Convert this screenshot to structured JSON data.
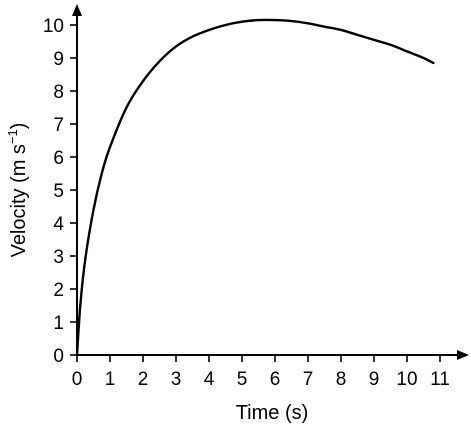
{
  "chart_data": {
    "type": "line",
    "title": "",
    "xlabel": "Time (s)",
    "ylabel_parts": {
      "main": "Velocity (m s",
      "sup": "−1",
      "close": ")"
    },
    "xlim": [
      0,
      11
    ],
    "ylim": [
      0,
      10
    ],
    "x_ticks": [
      "0",
      "1",
      "2",
      "3",
      "4",
      "5",
      "6",
      "7",
      "8",
      "9",
      "10",
      "11"
    ],
    "y_ticks": [
      "0",
      "1",
      "2",
      "3",
      "4",
      "5",
      "6",
      "7",
      "8",
      "9",
      "10"
    ],
    "grid": false,
    "legend": "none",
    "colors": {
      "line": "#000000",
      "axis": "#000000"
    },
    "series": [
      {
        "x": [
          0,
          0.1,
          0.25,
          0.5,
          0.75,
          1,
          1.5,
          2,
          2.5,
          3,
          3.5,
          4,
          4.5,
          5,
          5.5,
          6,
          6.5,
          7,
          7.5,
          8,
          8.5,
          9,
          9.5,
          10,
          10.5,
          10.8
        ],
        "y": [
          0,
          1.5,
          2.9,
          4.4,
          5.5,
          6.3,
          7.5,
          8.3,
          8.9,
          9.35,
          9.65,
          9.85,
          10.0,
          10.1,
          10.15,
          10.15,
          10.12,
          10.05,
          9.95,
          9.85,
          9.7,
          9.55,
          9.4,
          9.2,
          9.0,
          8.85
        ]
      }
    ]
  }
}
